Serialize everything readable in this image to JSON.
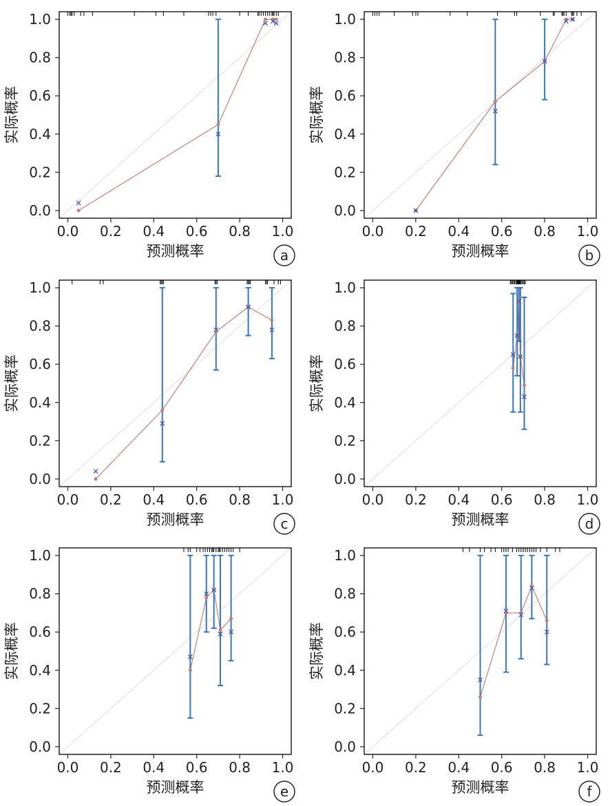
{
  "chart_data": [
    {
      "type": "line",
      "label": "a",
      "xlabel": "预测概率",
      "ylabel": "实际概率",
      "xlim": [
        -0.04,
        1.04
      ],
      "ylim": [
        -0.04,
        1.04
      ],
      "xticks": [
        "0.0",
        "0.2",
        "0.4",
        "0.6",
        "0.8",
        "1.0"
      ],
      "yticks": [
        "0.0",
        "0.2",
        "0.4",
        "0.6",
        "0.8",
        "1.0"
      ],
      "predicted": [
        0.05,
        0.7,
        0.92,
        0.955,
        0.97
      ],
      "observed": [
        0.0,
        0.45,
        1.0,
        1.0,
        1.0
      ],
      "corrected": [
        0.04,
        0.4,
        0.98,
        0.99,
        0.98
      ],
      "ci": [
        null,
        [
          0.18,
          1.0
        ],
        null,
        null,
        null
      ],
      "rug": [
        0.0,
        0.01,
        0.015,
        0.02,
        0.03,
        0.06,
        0.075,
        0.115,
        0.31,
        0.41,
        0.445,
        0.54,
        0.655,
        0.665,
        0.675,
        0.69,
        0.8,
        0.84,
        0.885,
        0.89,
        0.9,
        0.91,
        0.92,
        0.93,
        0.94,
        0.95,
        0.955,
        0.96,
        0.97,
        0.98
      ]
    },
    {
      "type": "line",
      "label": "b",
      "xlabel": "预测概率",
      "ylabel": "实际概率",
      "xlim": [
        -0.04,
        1.04
      ],
      "ylim": [
        -0.04,
        1.04
      ],
      "xticks": [
        "0.0",
        "0.2",
        "0.4",
        "0.6",
        "0.8",
        "1.0"
      ],
      "yticks": [
        "0.0",
        "0.2",
        "0.4",
        "0.6",
        "0.8",
        "1.0"
      ],
      "predicted": [
        0.2,
        0.57,
        0.8,
        0.9,
        0.93
      ],
      "observed": [
        0.0,
        0.57,
        0.78,
        1.0,
        1.0
      ],
      "corrected": [
        0.0,
        0.52,
        0.78,
        0.99,
        1.0
      ],
      "ci": [
        null,
        [
          0.24,
          1.0
        ],
        [
          0.58,
          1.0
        ],
        null,
        null
      ],
      "rug": [
        0.0,
        0.01,
        0.02,
        0.03,
        0.1,
        0.185,
        0.2,
        0.21,
        0.36,
        0.44,
        0.58,
        0.66,
        0.67,
        0.78,
        0.84,
        0.845,
        0.88,
        0.885,
        0.89,
        0.9,
        0.925,
        0.93,
        0.935,
        0.95,
        0.97
      ]
    },
    {
      "type": "line",
      "label": "c",
      "xlabel": "预测概率",
      "ylabel": "实际概率",
      "xlim": [
        -0.04,
        1.04
      ],
      "ylim": [
        -0.04,
        1.04
      ],
      "xticks": [
        "0.0",
        "0.2",
        "0.4",
        "0.6",
        "0.8",
        "1.0"
      ],
      "yticks": [
        "0.0",
        "0.2",
        "0.4",
        "0.6",
        "0.8",
        "1.0"
      ],
      "predicted": [
        0.13,
        0.44,
        0.69,
        0.84,
        0.95
      ],
      "observed": [
        0.0,
        0.36,
        0.77,
        0.9,
        0.83
      ],
      "corrected": [
        0.04,
        0.29,
        0.78,
        0.9,
        0.78
      ],
      "ci": [
        null,
        [
          0.09,
          1.0
        ],
        [
          0.57,
          1.0
        ],
        [
          0.75,
          1.0
        ],
        [
          0.63,
          1.0
        ]
      ],
      "rug": [
        0.02,
        0.15,
        0.165,
        0.43,
        0.435,
        0.44,
        0.445,
        0.685,
        0.69,
        0.695,
        0.835,
        0.84,
        0.845,
        0.85,
        0.92,
        0.925,
        0.93,
        0.96,
        0.98,
        0.99
      ]
    },
    {
      "type": "line",
      "label": "d",
      "xlabel": "预测概率",
      "ylabel": "实际概率",
      "xlim": [
        -0.04,
        1.04
      ],
      "ylim": [
        -0.04,
        1.04
      ],
      "xticks": [
        "0.0",
        "0.2",
        "0.4",
        "0.6",
        "0.8",
        "1.0"
      ],
      "yticks": [
        "0.0",
        "0.2",
        "0.4",
        "0.6",
        "0.8",
        "1.0"
      ],
      "predicted": [
        0.653,
        0.672,
        0.68,
        0.687,
        0.705
      ],
      "observed": [
        0.58,
        0.75,
        0.93,
        0.64,
        0.49
      ],
      "corrected": [
        0.65,
        0.75,
        0.93,
        0.64,
        0.43
      ],
      "ci": [
        [
          0.35,
          0.97
        ],
        [
          0.54,
          1.0
        ],
        [
          0.72,
          1.0
        ],
        [
          0.35,
          1.0
        ],
        [
          0.26,
          0.95
        ]
      ],
      "rug": [
        0.64,
        0.645,
        0.65,
        0.655,
        0.66,
        0.665,
        0.67,
        0.672,
        0.675,
        0.678,
        0.68,
        0.683,
        0.686,
        0.69,
        0.695,
        0.7,
        0.705,
        0.71
      ]
    },
    {
      "type": "line",
      "label": "e",
      "xlabel": "预测概率",
      "ylabel": "实际概率",
      "xlim": [
        -0.04,
        1.04
      ],
      "ylim": [
        -0.04,
        1.04
      ],
      "xticks": [
        "0.0",
        "0.2",
        "0.4",
        "0.6",
        "0.8",
        "1.0"
      ],
      "yticks": [
        "0.0",
        "0.2",
        "0.4",
        "0.6",
        "0.8",
        "1.0"
      ],
      "predicted": [
        0.57,
        0.645,
        0.68,
        0.71,
        0.76
      ],
      "observed": [
        0.4,
        0.78,
        0.82,
        0.61,
        0.67
      ],
      "corrected": [
        0.47,
        0.8,
        0.82,
        0.59,
        0.6
      ],
      "ci": [
        [
          0.15,
          1.0
        ],
        [
          0.6,
          1.0
        ],
        [
          0.62,
          1.0
        ],
        [
          0.32,
          1.0
        ],
        [
          0.45,
          1.0
        ]
      ],
      "rug": [
        0.54,
        0.56,
        0.57,
        0.6,
        0.615,
        0.63,
        0.64,
        0.65,
        0.66,
        0.67,
        0.675,
        0.68,
        0.69,
        0.7,
        0.705,
        0.71,
        0.72,
        0.73,
        0.74,
        0.75,
        0.76,
        0.77,
        0.8
      ]
    },
    {
      "type": "line",
      "label": "f",
      "xlabel": "预测概率",
      "ylabel": "实际概率",
      "xlim": [
        -0.04,
        1.04
      ],
      "ylim": [
        -0.04,
        1.04
      ],
      "xticks": [
        "0.0",
        "0.2",
        "0.4",
        "0.6",
        "0.8",
        "1.0"
      ],
      "yticks": [
        "0.0",
        "0.2",
        "0.4",
        "0.6",
        "0.8",
        "1.0"
      ],
      "predicted": [
        0.5,
        0.62,
        0.69,
        0.74,
        0.81
      ],
      "observed": [
        0.26,
        0.7,
        0.7,
        0.84,
        0.66
      ],
      "corrected": [
        0.35,
        0.71,
        0.69,
        0.83,
        0.6
      ],
      "ci": [
        [
          0.06,
          1.0
        ],
        [
          0.39,
          1.0
        ],
        [
          0.46,
          1.0
        ],
        [
          0.67,
          1.0
        ],
        [
          0.43,
          1.0
        ]
      ],
      "rug": [
        0.42,
        0.45,
        0.5,
        0.52,
        0.55,
        0.57,
        0.6,
        0.61,
        0.62,
        0.63,
        0.65,
        0.67,
        0.68,
        0.69,
        0.7,
        0.71,
        0.72,
        0.73,
        0.74,
        0.75,
        0.76,
        0.78,
        0.81,
        0.85,
        0.87
      ]
    }
  ],
  "colors": {
    "observed": "#c0817a",
    "corrected": "#4a55a8",
    "ci": "#3a75b5",
    "diagonal": "#dddddd",
    "rug": "#000000"
  }
}
